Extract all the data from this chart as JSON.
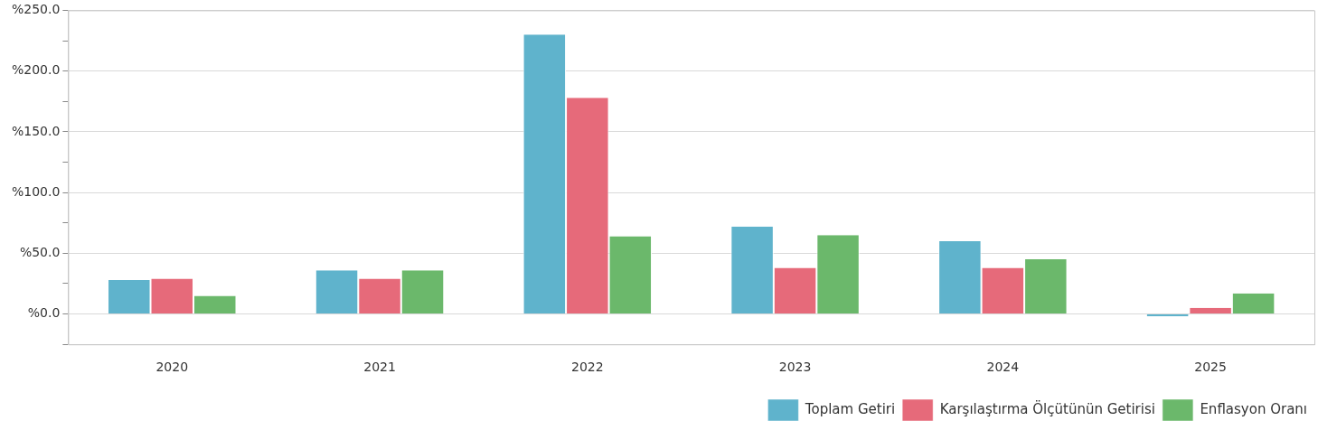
{
  "chart_data": {
    "type": "bar",
    "categories": [
      "2020",
      "2021",
      "2022",
      "2023",
      "2024",
      "2025"
    ],
    "series": [
      {
        "name": "Toplam Getiri",
        "color": "#5fb3cc",
        "values": [
          28,
          36,
          230,
          72,
          60,
          -2
        ]
      },
      {
        "name": "Karşılaştırma Ölçütünün Getirisi",
        "color": "#e66a7a",
        "values": [
          29,
          29,
          178,
          38,
          38,
          5
        ]
      },
      {
        "name": "Enflasyon Oranı",
        "color": "#6bb86b",
        "values": [
          15,
          36,
          64,
          65,
          45,
          17
        ]
      }
    ],
    "ylim": [
      -25,
      250
    ],
    "yticks": [
      {
        "value": -25,
        "label": null
      },
      {
        "value": 0,
        "label": "%0.0"
      },
      {
        "value": 25,
        "label": null
      },
      {
        "value": 50,
        "label": "%50.0"
      },
      {
        "value": 75,
        "label": null
      },
      {
        "value": 100,
        "label": "%100.0"
      },
      {
        "value": 125,
        "label": null
      },
      {
        "value": 150,
        "label": "%150.0"
      },
      {
        "value": 175,
        "label": null
      },
      {
        "value": 200,
        "label": "%200.0"
      },
      {
        "value": 225,
        "label": null
      },
      {
        "value": 250,
        "label": "%250.0"
      }
    ],
    "grid": "y",
    "legend": "bottom right"
  }
}
